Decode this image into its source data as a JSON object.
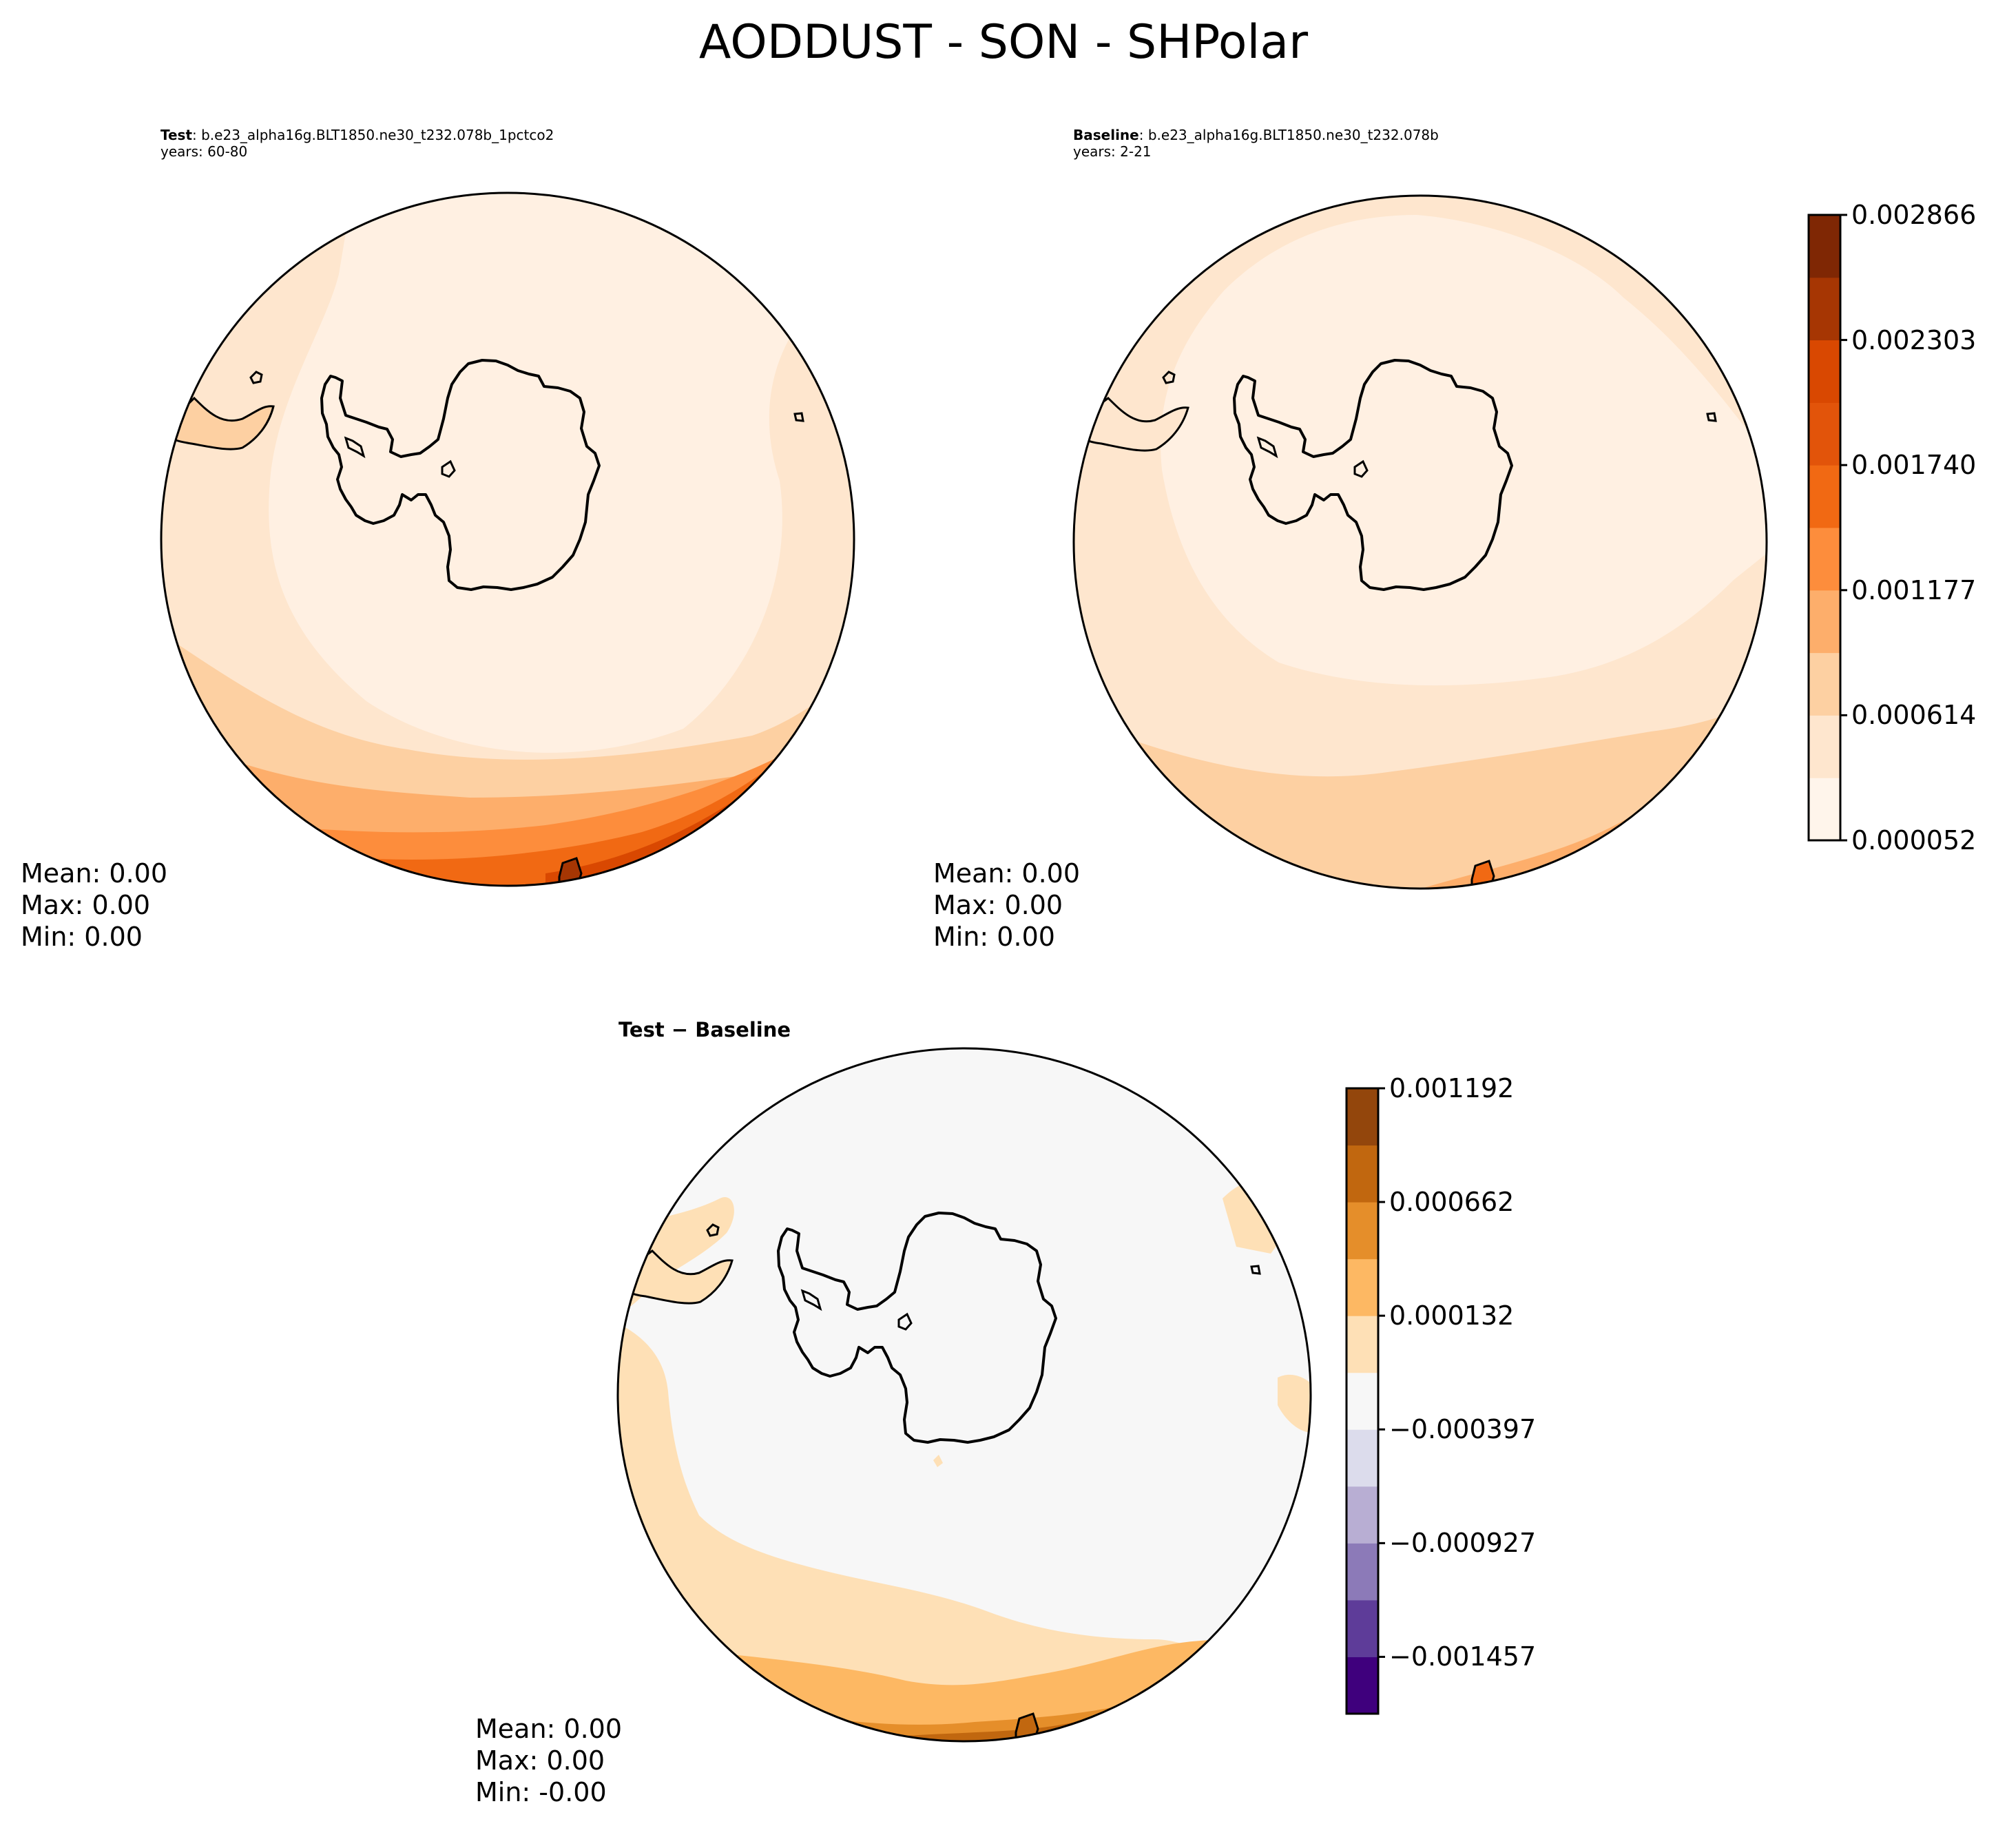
{
  "figure_title": "AODDUST - SON - SHPolar",
  "panels": {
    "test": {
      "label": "Test",
      "case": ": b.e23_alpha16g.BLT1850.ne30_t232.078b_1pctco2",
      "years": "years: 60-80",
      "stats": {
        "mean": "Mean:  0.00",
        "max": "Max:  0.00",
        "min": "Min:  0.00"
      }
    },
    "baseline": {
      "label": "Baseline",
      "case": ": b.e23_alpha16g.BLT1850.ne30_t232.078b",
      "years": "years: 2-21",
      "stats": {
        "mean": "Mean:  0.00",
        "max": "Max:  0.00",
        "min": "Min:  0.00"
      }
    },
    "diff": {
      "label": "Test − Baseline",
      "stats": {
        "mean": "Mean:  0.00",
        "max": "Max:  0.00",
        "min": "Min: -0.00"
      }
    }
  },
  "colorbars": {
    "main": {
      "tick_labels": [
        "0.000052",
        "0.000614",
        "0.001177",
        "0.001740",
        "0.002303",
        "0.002866"
      ],
      "colors": [
        "#fff5eb",
        "#fee6ce",
        "#fdd0a2",
        "#fdae6b",
        "#fd8d3c",
        "#f16913",
        "#e2540a",
        "#d94801",
        "#a63603",
        "#7f2704"
      ]
    },
    "diff": {
      "tick_labels": [
        "−0.001457",
        "−0.000927",
        "−0.000397",
        "0.000132",
        "0.000662",
        "0.001192"
      ],
      "colors": [
        "#3f007d",
        "#5e3c99",
        "#8c7ab8",
        "#b8aed3",
        "#dcdcec",
        "#f7f7f7",
        "#fee0b6",
        "#fdb863",
        "#e58e2a",
        "#c1670f",
        "#93460c"
      ]
    }
  }
}
